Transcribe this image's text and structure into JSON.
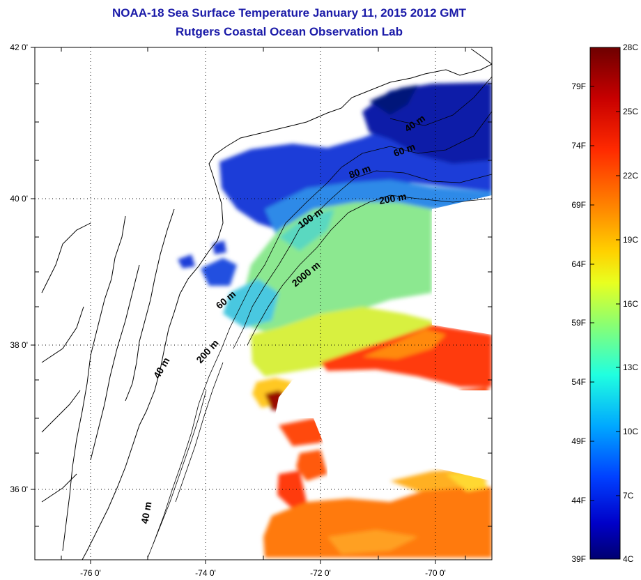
{
  "title": {
    "line1": "NOAA-18 Sea Surface Temperature January 11, 2015 2012 GMT",
    "line2": "Rutgers Coastal Ocean Observation Lab"
  },
  "map": {
    "lat_labels": [
      "42 0'",
      "40 0'",
      "38 0'",
      "36 0'"
    ],
    "lon_labels": [
      "-76 0'",
      "-74 0'",
      "-72 0'",
      "-70 0'"
    ],
    "contour_labels": [
      "40 m",
      "60 m",
      "80 m",
      "200 m",
      "100 m",
      "2000 m",
      "60 m",
      "200 m",
      "40 m",
      "40 m"
    ]
  },
  "colorbar": {
    "fahrenheit": [
      "79F",
      "74F",
      "69F",
      "64F",
      "59F",
      "54F",
      "49F",
      "44F",
      "39F"
    ],
    "celsius": [
      "28C",
      "25C",
      "22C",
      "19C",
      "16C",
      "13C",
      "10C",
      "7C",
      "4C"
    ],
    "colors": [
      "#7a0000",
      "#c40000",
      "#ff2a00",
      "#ff7a00",
      "#ffc800",
      "#e8ff20",
      "#8cff70",
      "#20ffd8",
      "#00b0ff",
      "#0050ff",
      "#0000c8",
      "#00006e"
    ]
  }
}
